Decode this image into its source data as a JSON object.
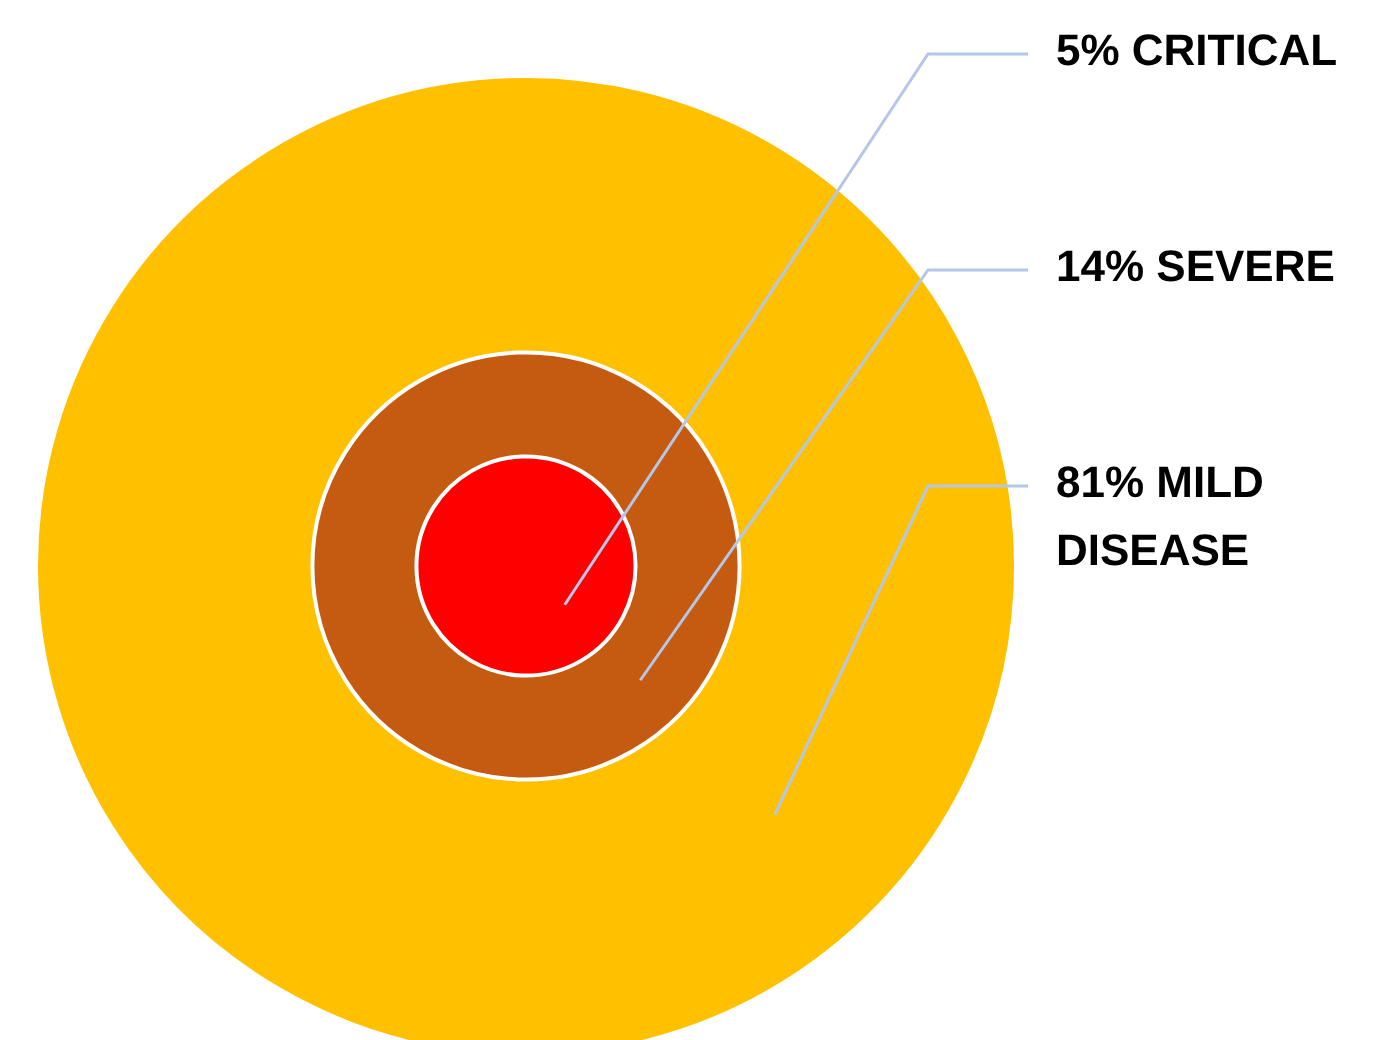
{
  "chart_data": {
    "type": "other",
    "categories": [
      "CRITICAL",
      "SEVERE",
      "MILD DISEASE"
    ],
    "values": [
      5,
      14,
      81
    ],
    "value_labels": [
      "5%",
      "14%",
      "81%"
    ],
    "colors": [
      "#ff0000",
      "#c55a11",
      "#ffc000"
    ]
  }
}
